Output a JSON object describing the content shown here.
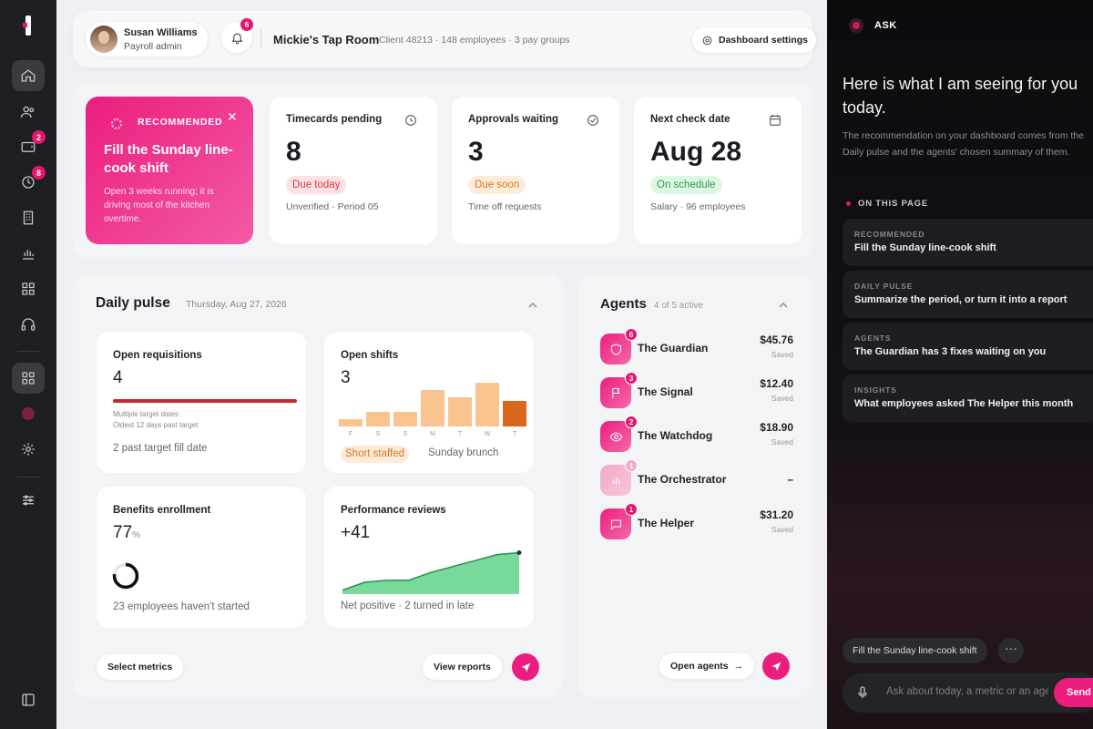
{
  "rail": {
    "badge_wallet": "2",
    "badge_clock": "8"
  },
  "header": {
    "user_name": "Susan Williams",
    "user_role": "Payroll admin",
    "notif_count": "6",
    "company": "Mickie's Tap Room",
    "company_meta": "Client 48213 · 148 employees · 3 pay groups",
    "settings_label": "Dashboard settings"
  },
  "recommendation": {
    "tag": "RECOMMENDED",
    "title": "Fill the Sunday line-cook shift",
    "desc": "Open 3 weeks running; it is driving most of the kitchen overtime."
  },
  "stats": [
    {
      "label": "Timecards pending",
      "value": "8",
      "pill": "Due today",
      "sub": "Unverified · Period 05"
    },
    {
      "label": "Approvals waiting",
      "value": "3",
      "pill": "Due soon",
      "sub": "Time off requests"
    },
    {
      "label": "Next check date",
      "value": "Aug 28",
      "pill": "On schedule",
      "sub": "Salary · 96 employees"
    }
  ],
  "pulse": {
    "title": "Daily pulse",
    "date": "Thursday, Aug 27, 2026",
    "metrics": {
      "requisitions": {
        "title": "Open requisitions",
        "value": "4",
        "note1": "Multiple target dates",
        "note2": "Oldest 12 days past target",
        "foot": "2 past target fill date"
      },
      "shifts": {
        "title": "Open shifts",
        "value": "3",
        "pill": "Short staffed",
        "foot": "Sunday brunch",
        "chart_data": {
          "type": "bar",
          "categories": [
            "F",
            "S",
            "S",
            "M",
            "T",
            "W",
            "T"
          ],
          "values": [
            1,
            2,
            2,
            5,
            4,
            6,
            3.5
          ],
          "ylim": [
            0,
            7
          ]
        }
      },
      "benefits": {
        "title": "Benefits enrollment",
        "value": "77",
        "unit": "%",
        "progress": 0.77,
        "foot": "23 employees haven't started"
      },
      "reviews": {
        "title": "Performance reviews",
        "value": "+41",
        "foot": "Net positive · 2 turned in late",
        "chart_data": {
          "type": "area",
          "values": [
            2,
            6,
            7,
            7,
            11,
            14,
            17,
            20,
            21
          ],
          "ylim": [
            0,
            24
          ]
        }
      }
    },
    "select_label": "Select metrics",
    "reports_label": "View reports"
  },
  "agents": {
    "title": "Agents",
    "sub": "4 of 5 active",
    "items": [
      {
        "name": "The Guardian",
        "badge": "6",
        "value": "$45.76",
        "saved": "Saved"
      },
      {
        "name": "The Signal",
        "badge": "3",
        "value": "$12.40",
        "saved": "Saved"
      },
      {
        "name": "The Watchdog",
        "badge": "2",
        "value": "$18.90",
        "saved": "Saved"
      },
      {
        "name": "The Orchestrator",
        "badge": "1",
        "value": "–",
        "saved": ""
      },
      {
        "name": "The Helper",
        "badge": "1",
        "value": "$31.20",
        "saved": "Saved"
      }
    ],
    "open_label": "Open agents"
  },
  "ask": {
    "title": "ASK",
    "intro": "Here is what I am seeing for you today.",
    "intro_sub": "The recommendation on your dashboard comes from the Daily pulse and the agents' chosen summary of them.",
    "on_page": "ON THIS PAGE",
    "cards": [
      {
        "k": "RECOMMENDED",
        "v": "Fill the Sunday line-cook shift"
      },
      {
        "k": "DAILY PULSE",
        "v": "Summarize the period, or turn it into a report"
      },
      {
        "k": "AGENTS",
        "v": "The Guardian has 3 fixes waiting on you"
      },
      {
        "k": "INSIGHTS",
        "v": "What employees asked The Helper this month"
      }
    ],
    "chip": "Fill the Sunday line-cook shift",
    "more": "···",
    "placeholder": "Ask about today, a metric or an agent",
    "send": "Send"
  },
  "colors": {
    "accent": "#ec1d7e",
    "rail": "#1e1f23",
    "panel": "#0c0c0f"
  }
}
